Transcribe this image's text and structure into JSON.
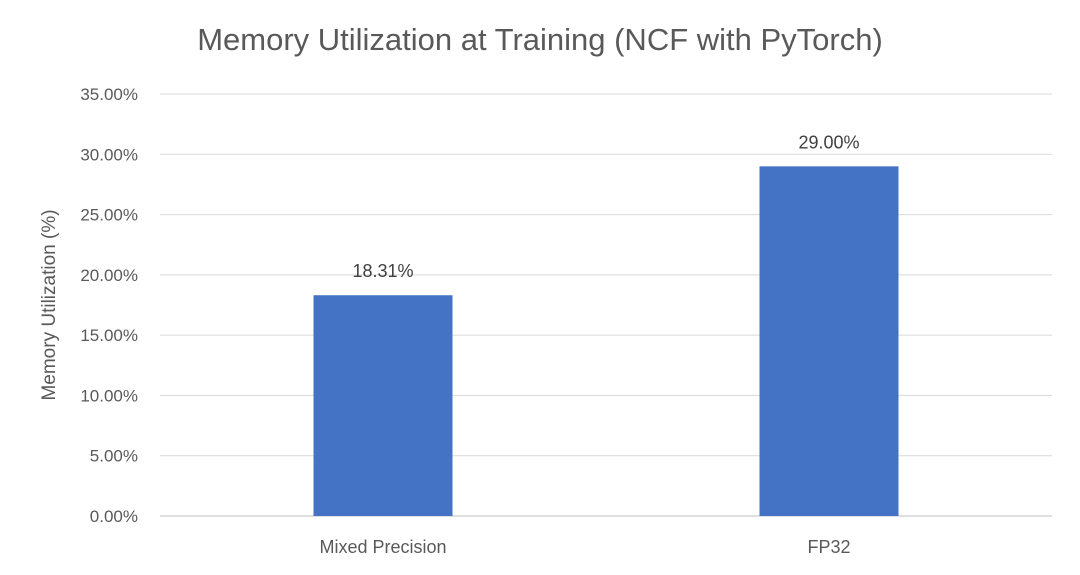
{
  "chart_data": {
    "type": "bar",
    "title": "Memory Utilization at Training (NCF with PyTorch)",
    "xlabel": "",
    "ylabel": "Memory Utilization (%)",
    "categories": [
      "Mixed Precision",
      "FP32"
    ],
    "values": [
      18.31,
      29.0
    ],
    "data_labels": [
      "18.31%",
      "29.00%"
    ],
    "ylim": [
      0,
      35
    ],
    "yticks": [
      "0.00%",
      "5.00%",
      "10.00%",
      "15.00%",
      "20.00%",
      "25.00%",
      "30.00%",
      "35.00%"
    ],
    "grid": true,
    "legend": "none",
    "bar_color": "#4472C4"
  }
}
